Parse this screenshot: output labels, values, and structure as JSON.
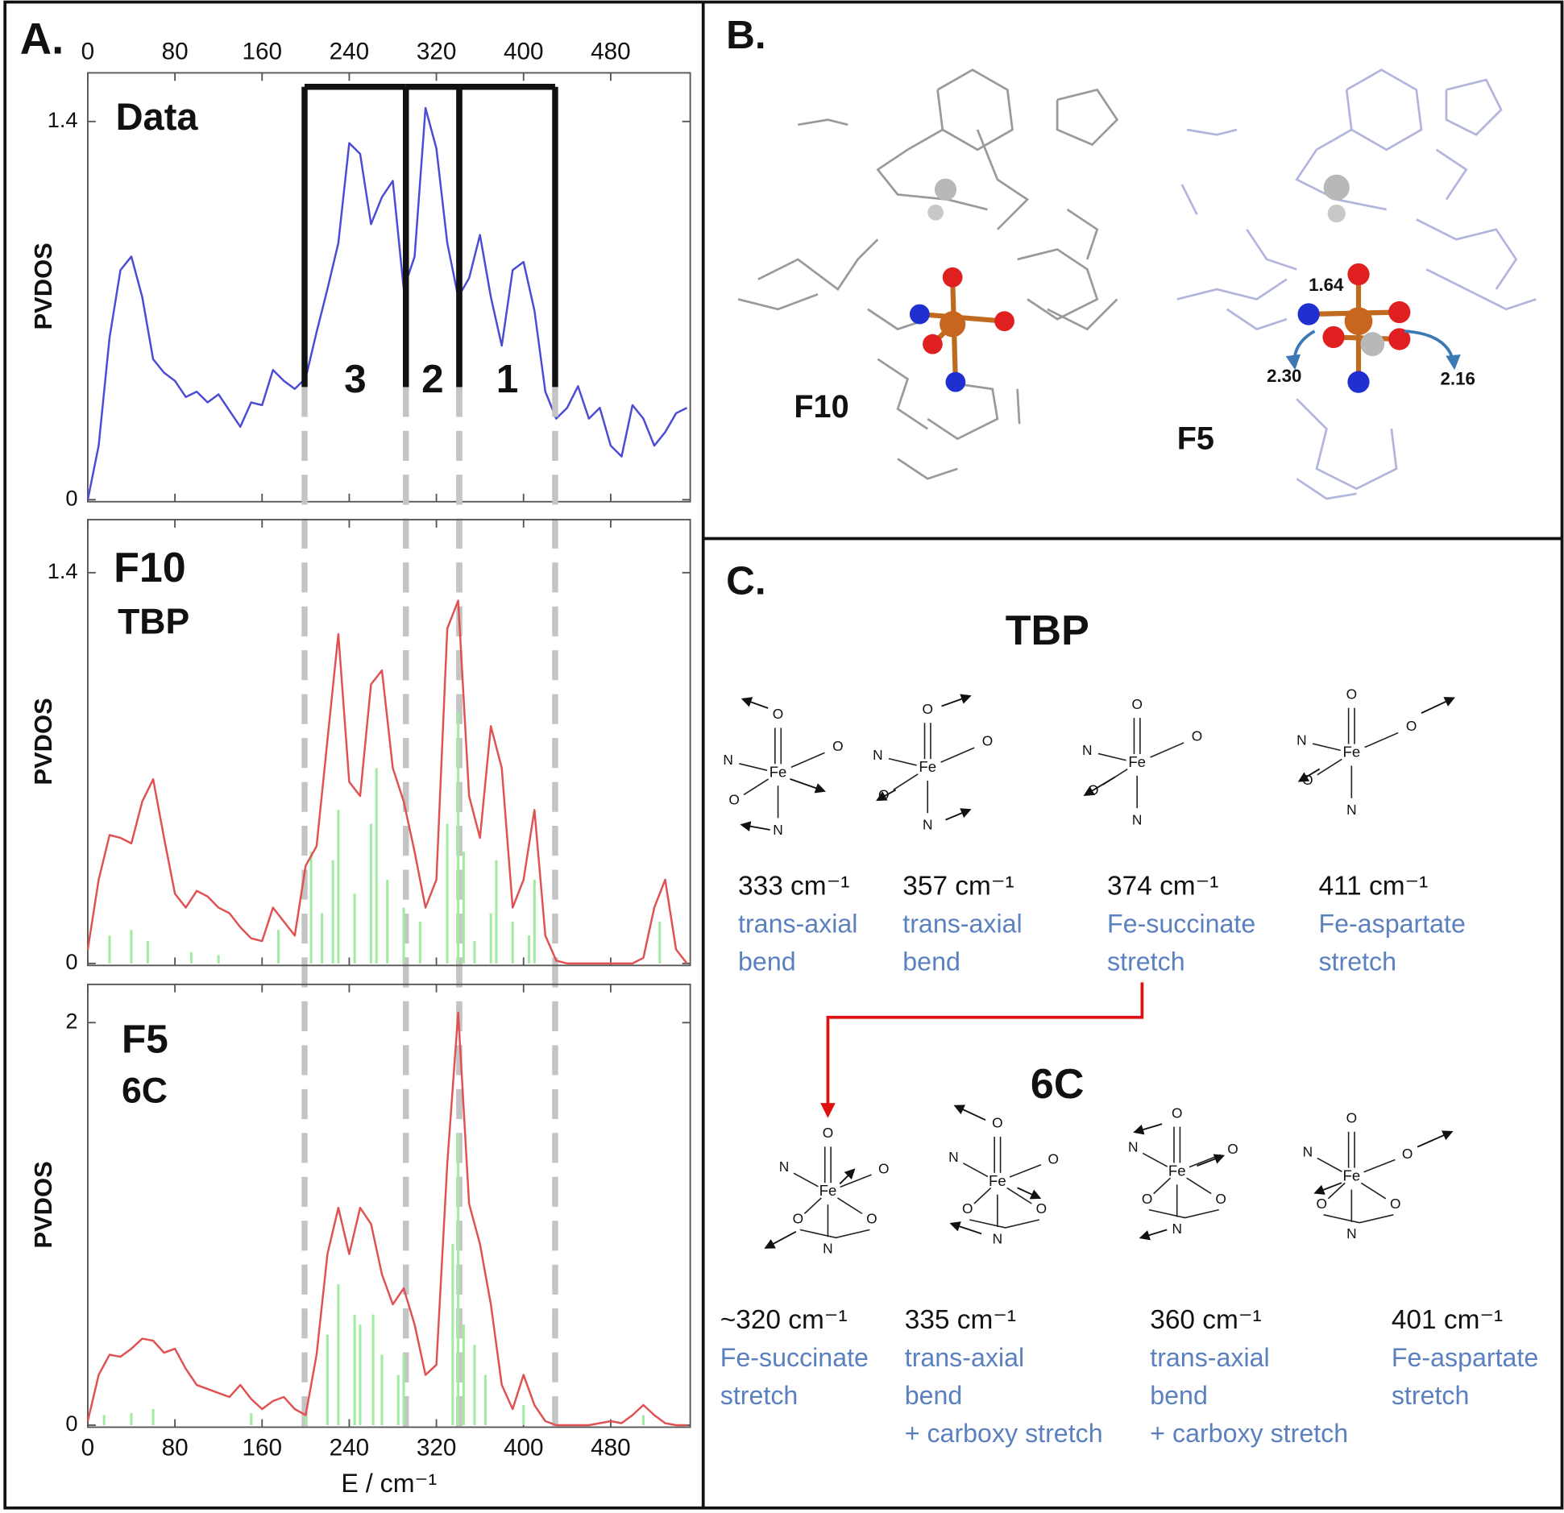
{
  "chart_data": [
    {
      "type": "line",
      "title": "Data",
      "ylabel": "PVDOS",
      "xlim": [
        0,
        553
      ],
      "xticks": [
        0,
        80,
        160,
        240,
        320,
        400,
        480
      ],
      "xtick_labels": "top",
      "ylim": [
        0,
        1.58
      ],
      "yticks": [
        0,
        1.4
      ],
      "x": [
        0,
        10,
        20,
        30,
        40,
        50,
        60,
        70,
        80,
        90,
        100,
        110,
        120,
        130,
        140,
        150,
        160,
        170,
        180,
        190,
        200,
        210,
        220,
        230,
        240,
        250,
        260,
        270,
        280,
        290,
        300,
        310,
        320,
        330,
        340,
        350,
        360,
        370,
        380,
        390,
        400,
        410,
        420,
        430,
        440,
        450,
        460,
        470,
        480,
        490,
        500,
        510,
        520,
        530,
        540,
        550
      ],
      "series": [
        {
          "color": "#4b4bd6",
          "values": [
            0,
            0.2,
            0.6,
            0.85,
            0.9,
            0.75,
            0.52,
            0.47,
            0.44,
            0.38,
            0.4,
            0.36,
            0.39,
            0.33,
            0.27,
            0.36,
            0.35,
            0.48,
            0.44,
            0.41,
            0.45,
            0.62,
            0.78,
            0.95,
            1.32,
            1.28,
            1.02,
            1.12,
            1.18,
            0.78,
            0.9,
            1.45,
            1.3,
            0.95,
            0.75,
            0.82,
            0.98,
            0.75,
            0.57,
            0.85,
            0.88,
            0.7,
            0.4,
            0.3,
            0.34,
            0.42,
            0.3,
            0.34,
            0.2,
            0.16,
            0.35,
            0.3,
            0.2,
            0.25,
            0.32,
            0.34
          ]
        }
      ],
      "regions": [
        {
          "label": "3",
          "x": [
            199,
            292
          ]
        },
        {
          "label": "2",
          "x": [
            292,
            341
          ]
        },
        {
          "label": "1",
          "x": [
            341,
            429
          ]
        }
      ]
    },
    {
      "type": "line",
      "title": "F10",
      "subtitle": "TBP",
      "ylabel": "PVDOS",
      "xlim": [
        0,
        553
      ],
      "xticks": [
        0,
        80,
        160,
        240,
        320,
        400,
        480
      ],
      "xtick_labels": "none",
      "ylim": [
        0,
        1.59
      ],
      "yticks": [
        0,
        1.4
      ],
      "x": [
        0,
        10,
        20,
        30,
        40,
        50,
        60,
        70,
        80,
        90,
        100,
        110,
        120,
        130,
        140,
        150,
        160,
        170,
        180,
        190,
        200,
        210,
        220,
        230,
        240,
        250,
        260,
        270,
        280,
        290,
        300,
        310,
        320,
        330,
        340,
        350,
        360,
        370,
        380,
        390,
        400,
        410,
        420,
        430,
        440,
        450,
        460,
        470,
        480,
        490,
        500,
        510,
        520,
        530,
        540,
        550
      ],
      "series": [
        {
          "color": "#e05252",
          "values": [
            0.05,
            0.3,
            0.46,
            0.45,
            0.43,
            0.58,
            0.66,
            0.45,
            0.25,
            0.2,
            0.26,
            0.24,
            0.2,
            0.18,
            0.13,
            0.09,
            0.08,
            0.2,
            0.15,
            0.1,
            0.35,
            0.42,
            0.8,
            1.18,
            0.65,
            0.6,
            1.0,
            1.05,
            0.7,
            0.58,
            0.4,
            0.2,
            0.3,
            1.2,
            1.3,
            0.6,
            0.45,
            0.85,
            0.7,
            0.2,
            0.3,
            0.55,
            0.1,
            0.01,
            0,
            0,
            0,
            0,
            0,
            0,
            0,
            0.02,
            0.2,
            0.3,
            0.05,
            0
          ]
        }
      ],
      "sticks": {
        "color": "#a3eba3",
        "x": [
          20,
          40,
          55,
          95,
          120,
          175,
          205,
          215,
          225,
          230,
          245,
          260,
          265,
          275,
          290,
          305,
          330,
          340,
          345,
          355,
          370,
          375,
          390,
          405,
          410,
          525
        ],
        "values": [
          0.1,
          0.12,
          0.08,
          0.04,
          0.03,
          0.12,
          0.4,
          0.18,
          0.37,
          0.55,
          0.25,
          0.5,
          0.7,
          0.3,
          0.2,
          0.15,
          0.5,
          0.9,
          0.4,
          0.08,
          0.18,
          0.37,
          0.15,
          0.1,
          0.3,
          0.15
        ]
      }
    },
    {
      "type": "line",
      "title": "F5",
      "subtitle": "6C",
      "ylabel": "PVDOS",
      "xlabel": "E / cm⁻¹",
      "xlim": [
        0,
        553
      ],
      "xticks": [
        0,
        80,
        160,
        240,
        320,
        400,
        480
      ],
      "xtick_labels": "bottom",
      "ylim": [
        0,
        2.19
      ],
      "yticks": [
        0,
        2
      ],
      "x": [
        0,
        10,
        20,
        30,
        40,
        50,
        60,
        70,
        80,
        90,
        100,
        110,
        120,
        130,
        140,
        150,
        160,
        170,
        180,
        190,
        200,
        210,
        220,
        230,
        240,
        250,
        260,
        270,
        280,
        290,
        300,
        310,
        320,
        330,
        340,
        350,
        360,
        370,
        380,
        390,
        400,
        410,
        420,
        430,
        440,
        450,
        460,
        470,
        480,
        490,
        500,
        510,
        520,
        530,
        540,
        550
      ],
      "series": [
        {
          "color": "#e05252",
          "values": [
            0.02,
            0.25,
            0.35,
            0.34,
            0.38,
            0.43,
            0.42,
            0.36,
            0.38,
            0.28,
            0.2,
            0.18,
            0.16,
            0.14,
            0.2,
            0.13,
            0.08,
            0.12,
            0.14,
            0.08,
            0.05,
            0.35,
            0.85,
            1.08,
            0.85,
            1.08,
            1.0,
            0.75,
            0.6,
            0.68,
            0.5,
            0.25,
            0.3,
            1.3,
            2.05,
            1.1,
            0.9,
            0.6,
            0.2,
            0.08,
            0.25,
            0.1,
            0.02,
            0,
            0,
            0,
            0,
            0.01,
            0.02,
            0.01,
            0.05,
            0.1,
            0.05,
            0.01,
            0,
            0
          ]
        }
      ],
      "sticks": {
        "color": "#a3eba3",
        "x": [
          15,
          40,
          60,
          150,
          200,
          220,
          230,
          245,
          250,
          262,
          270,
          285,
          290,
          335,
          340,
          345,
          355,
          365,
          400,
          510
        ],
        "values": [
          0.05,
          0.06,
          0.08,
          0.06,
          0.05,
          0.45,
          0.7,
          0.55,
          0.5,
          0.55,
          0.35,
          0.25,
          0.35,
          0.9,
          1.45,
          0.5,
          0.4,
          0.25,
          0.1,
          0.05
        ]
      }
    }
  ],
  "panel_labels": [
    "A.",
    "B.",
    "C."
  ],
  "panel_b": {
    "structures": [
      "F10",
      "F5"
    ],
    "distances": [
      "1.64",
      "2.30",
      "2.16"
    ]
  },
  "panel_c": {
    "atoms": {
      "fe": "Fe",
      "o": "O",
      "n": "N"
    },
    "groups": [
      {
        "title": "TBP",
        "modes": [
          {
            "frequency": "333 cm⁻¹",
            "description": [
              "trans-axial",
              "bend"
            ]
          },
          {
            "frequency": "357 cm⁻¹",
            "description": [
              "trans-axial",
              "bend"
            ]
          },
          {
            "frequency": "374 cm⁻¹",
            "description": [
              "Fe-succinate",
              "stretch"
            ]
          },
          {
            "frequency": "411 cm⁻¹",
            "description": [
              "Fe-aspartate",
              "stretch"
            ]
          }
        ]
      },
      {
        "title": "6C",
        "modes": [
          {
            "frequency": "~320 cm⁻¹",
            "description": [
              "Fe-succinate",
              "stretch"
            ]
          },
          {
            "frequency": "335 cm⁻¹",
            "description": [
              "trans-axial",
              "bend",
              "+ carboxy stretch"
            ]
          },
          {
            "frequency": "360 cm⁻¹",
            "description": [
              "trans-axial",
              "bend",
              "+ carboxy stretch"
            ]
          },
          {
            "frequency": "401 cm⁻¹",
            "description": [
              "Fe-aspartate",
              "stretch"
            ]
          }
        ]
      }
    ]
  }
}
